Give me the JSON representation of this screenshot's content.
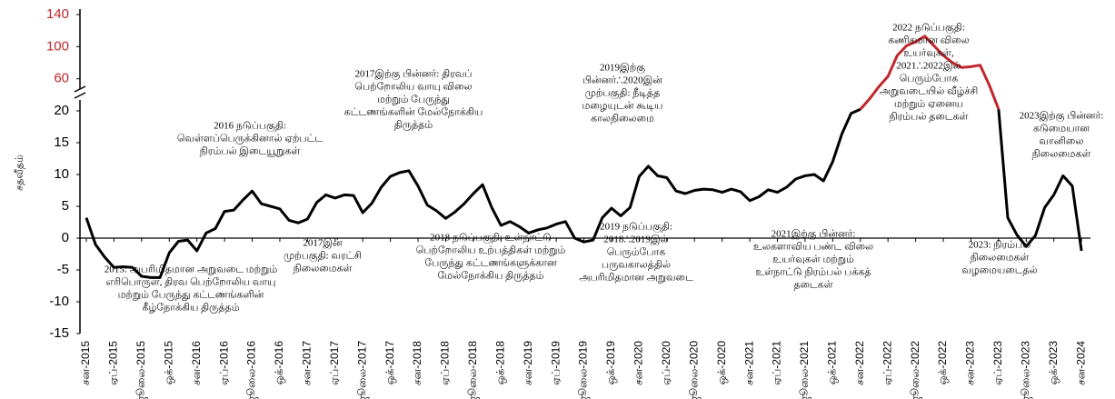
{
  "chart_data": {
    "type": "line",
    "y_label": "சதவீதம்",
    "categories": [
      "சன-2015",
      null,
      null,
      "ஏப்-2015",
      null,
      null,
      "ஜூலை-2015",
      null,
      null,
      "ஒக்-2015",
      null,
      null,
      "சன-2016",
      null,
      null,
      "ஏப்-2016",
      null,
      null,
      "ஜூலை-2016",
      null,
      null,
      "ஒக்-2016",
      null,
      null,
      "சன-2017",
      null,
      null,
      "ஏப்-2017",
      null,
      null,
      "ஜூலை-2017",
      null,
      null,
      "ஒக்-2017",
      null,
      null,
      "சன-2018",
      null,
      null,
      "ஏப்-2018",
      null,
      null,
      "ஜூலை-2018",
      null,
      null,
      "ஒக்-2018",
      null,
      null,
      "சன-2019",
      null,
      null,
      "ஏப்-2019",
      null,
      null,
      "ஜூலை-2019",
      null,
      null,
      "ஒக்-2019",
      null,
      null,
      "சன-2020",
      null,
      null,
      "ஏப்-2020",
      null,
      null,
      "ஜூலை-2020",
      null,
      null,
      "ஒக்-2020",
      null,
      null,
      "சன-2021",
      null,
      null,
      "ஏப்-2021",
      null,
      null,
      "ஜூலை-2021",
      null,
      null,
      "ஒக்-2021",
      null,
      null,
      "சன-2022",
      null,
      null,
      "ஏப்-2022",
      null,
      null,
      "ஜூலை-2022",
      null,
      null,
      "ஒக்-2022",
      null,
      null,
      "சன-2023",
      null,
      null,
      "ஏப்-2023",
      null,
      null,
      "ஜூலை-2023",
      null,
      null,
      "ஒக்-2023",
      null,
      null,
      "சன-2024"
    ],
    "values": [
      3.2,
      -1,
      -3,
      -4.6,
      -4.5,
      -4.6,
      -6,
      -6.2,
      -6.2,
      -2.3,
      -0.5,
      -0.3,
      -2,
      0.8,
      1.5,
      4.2,
      4.4,
      6,
      7.4,
      5.4,
      5,
      4.6,
      2.8,
      2.4,
      3,
      5.6,
      6.8,
      6.3,
      6.8,
      6.7,
      4,
      5.5,
      8,
      9.7,
      10.3,
      10.6,
      8.2,
      5.2,
      4.3,
      3.1,
      4.1,
      5.4,
      7,
      8.4,
      4.8,
      2,
      2.6,
      1.8,
      0.8,
      1.3,
      1.6,
      2.2,
      2.6,
      0,
      -0.6,
      -0.3,
      3.2,
      4.7,
      3.5,
      4.8,
      9.7,
      11.3,
      9.8,
      9.5,
      7.4,
      7,
      7.5,
      7.7,
      7.6,
      7.2,
      7.7,
      7.3,
      5.9,
      6.5,
      7.6,
      7.2,
      8,
      9.3,
      9.8,
      10,
      9,
      12,
      16.4,
      19.6,
      22,
      35,
      50,
      63,
      89,
      101,
      106,
      113,
      101,
      89,
      80,
      74,
      75,
      77,
      52,
      22,
      3.2,
      0.5,
      -1.3,
      0.4,
      4.8,
      6.8,
      9.8,
      8.2,
      -2
    ],
    "color": "#000000",
    "break_color": "#c0282d",
    "ylim": [
      -15,
      140
    ],
    "ybreak": 20,
    "yticks": [
      -15,
      -10,
      -5,
      0,
      5,
      10,
      15,
      20,
      60,
      100,
      140
    ],
    "annotations": [
      [
        "2015: அபரிமிதமான அறுவடை மற்றும்",
        "எரிபொருள், திரவ பெற்றோலிய வாயு",
        "மற்றும் பேருந்து கட்டணங்களின்",
        "கீழ்நோக்கிய திருத்தம்"
      ],
      [
        "2016 நடுப்பகுதி:",
        "வெள்ளப்பெருக்கினால் ஏற்பட்ட",
        "நிரம்பல் இடையூறுகள்"
      ],
      [
        "2017இன்",
        "முற்பகுதி: வரட்சி",
        "நிலைமைகள்"
      ],
      [
        "2017இற்கு பின்னர்: திரவப்",
        "பெற்றோலிய வாயு விலை",
        "மற்றும் பேருந்து",
        "கட்டணங்களின் மேல்நோக்கிய",
        "திருத்தம்"
      ],
      [
        "2018 நடுப்பகுதி: உள்நாட்டு",
        "பெற்றோலிய உற்பத்திகள் மற்றும்",
        "பேருந்து கட்டணங்களுக்கான",
        "மேல்நோக்கிய திருத்தம்"
      ],
      [
        "2019இற்கு",
        "பின்னர்.'.2020இன்",
        "முற்பகுதி: நீடித்த",
        "மழையுடன் கூடிய",
        "காலநிலைமை"
      ],
      [
        "2019 நடுப்பகுதி:",
        "2018.'.2019இல்",
        "பெரும்போக",
        "பருவகாலத்தில்",
        "அபரிமிதமான அறுவடை"
      ],
      [
        "2021இற்கு பின்னர்:",
        "உலகளாவிய பண்ட விலை",
        "உயர்வுகள் மற்றும்",
        "உள்நாட்டு நிரம்பல் பக்கத்",
        "தடைகள்"
      ],
      [
        "2022 நடுப்பகுதி:",
        "கணிசமான விலை",
        "உயர்வுகள்,",
        "2021.'.2022இல்",
        "பெரும்போக",
        "அறுவடையில் வீழ்ச்சி",
        "மற்றும் ஏனைய",
        "நிரம்பல் தடைகள்"
      ],
      [
        "2023இற்கு பின்னர்:",
        "கடுமையான",
        "வானிலை",
        "நிலைமைகள்"
      ],
      [
        "2023: நிரம்பல்",
        "நிலைமைகள்",
        "வழமையடைதல்"
      ]
    ]
  }
}
